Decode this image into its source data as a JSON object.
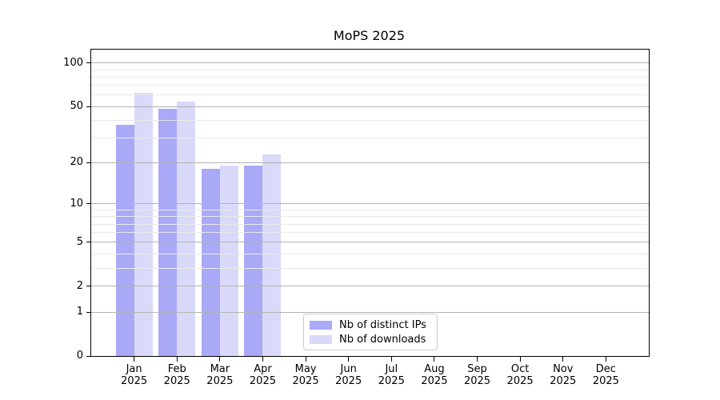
{
  "title": "MoPS 2025",
  "chart_data": {
    "type": "bar",
    "title": "MoPS 2025",
    "x_months": [
      "Jan",
      "Feb",
      "Mar",
      "Apr",
      "May",
      "Jun",
      "Jul",
      "Aug",
      "Sep",
      "Oct",
      "Nov",
      "Dec"
    ],
    "x_year": "2025",
    "series": [
      {
        "name": "Nb of distinct IPs",
        "color": "#a9a9f7",
        "values": [
          37,
          48,
          18,
          19,
          null,
          null,
          null,
          null,
          null,
          null,
          null,
          null
        ]
      },
      {
        "name": "Nb of downloads",
        "color": "#d9d9fa",
        "values": [
          62,
          54,
          19,
          23,
          null,
          null,
          null,
          null,
          null,
          null,
          null,
          null
        ]
      }
    ],
    "y_axis": {
      "scale": "log10(1+v)",
      "major_ticks": [
        0,
        1,
        2,
        5,
        10,
        20,
        50,
        100
      ],
      "minor_ticks": [
        3,
        4,
        6,
        7,
        8,
        9,
        30,
        40,
        60,
        70,
        80,
        90
      ],
      "top_value": 124
    },
    "grid": {
      "on": true,
      "major_color": "#b3b3b3",
      "minor_color": "#e9e9e9"
    },
    "legend_position": "lower center"
  },
  "colors": {
    "background": "#ffffff",
    "spine": "#000000",
    "legend_border": "#cccccc"
  }
}
